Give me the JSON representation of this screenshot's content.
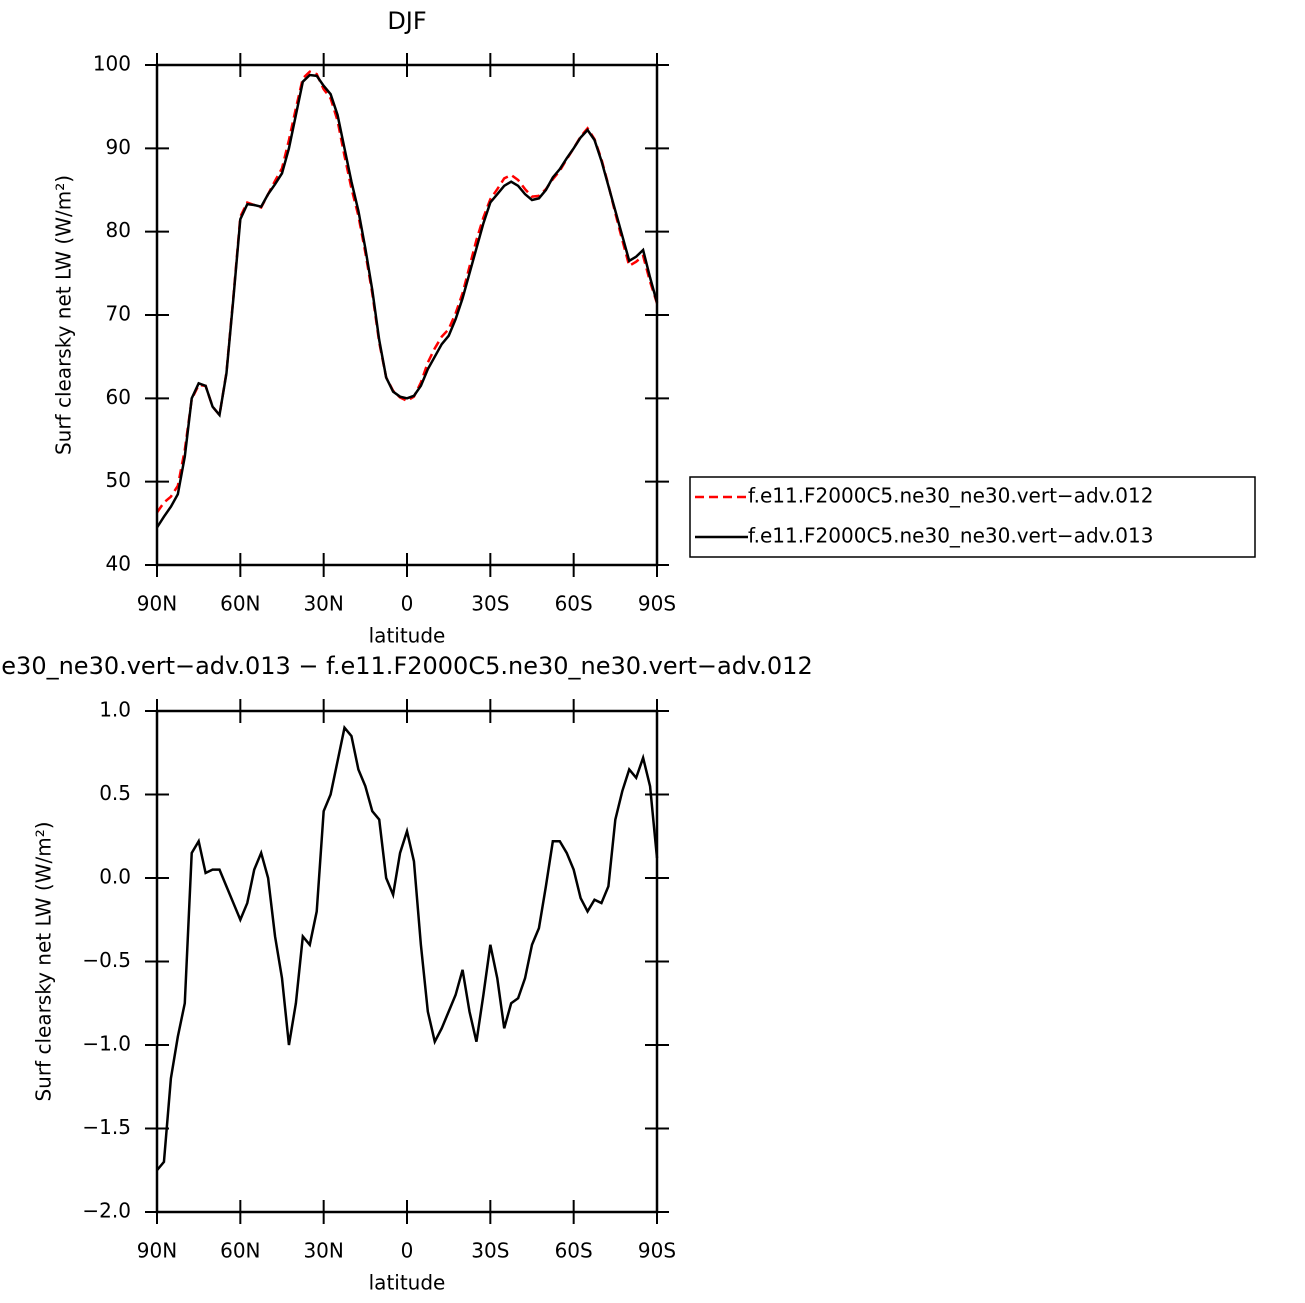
{
  "chart_data": [
    {
      "type": "line",
      "title": "DJF",
      "xlabel": "latitude",
      "ylabel": "Surf clearsky net LW (W/m²)",
      "x": [
        90,
        87.5,
        85,
        82.5,
        80,
        77.5,
        75,
        72.5,
        70,
        67.5,
        65,
        62.5,
        60,
        57.5,
        55,
        52.5,
        50,
        47.5,
        45,
        42.5,
        40,
        37.5,
        35,
        32.5,
        30,
        27.5,
        25,
        22.5,
        20,
        17.5,
        15,
        12.5,
        10,
        7.5,
        5,
        2.5,
        0,
        -2.5,
        -5,
        -7.5,
        -10,
        -12.5,
        -15,
        -17.5,
        -20,
        -22.5,
        -25,
        -27.5,
        -30,
        -32.5,
        -35,
        -37.5,
        -40,
        -42.5,
        -45,
        -47.5,
        -50,
        -52.5,
        -55,
        -57.5,
        -60,
        -62.5,
        -65,
        -67.5,
        -70,
        -72.5,
        -75,
        -77.5,
        -80,
        -82.5,
        -85,
        -87.5,
        -90
      ],
      "series": [
        {
          "name": "f.e11.F2000C5.ne30_ne30.vert−adv.012",
          "color": "#ff0000",
          "style": "dashed",
          "values": [
            46.3,
            47.5,
            48.2,
            49.5,
            53.8,
            59.9,
            61.6,
            61.5,
            59.0,
            58.0,
            63.1,
            72.2,
            81.8,
            83.5,
            83.2,
            82.9,
            84.5,
            86.1,
            87.6,
            91,
            94.8,
            98.4,
            99.2,
            98.9,
            97.1,
            96,
            93.3,
            89.1,
            85.2,
            81.9,
            77.5,
            72.6,
            66.7,
            62.5,
            60.9,
            60.1,
            59.7,
            60.2,
            61.9,
            64.3,
            66.0,
            67.4,
            68.3,
            70.2,
            72.6,
            75.8,
            79.0,
            81.7,
            83.9,
            85.1,
            86.4,
            86.8,
            86.2,
            85.1,
            84.2,
            84.3,
            85.1,
            86.3,
            87.3,
            88.7,
            90.0,
            91.4,
            92.4,
            91.1,
            88.7,
            85.6,
            82.2,
            79.0,
            75.9,
            76.4,
            77.1,
            74.0,
            71.4
          ]
        },
        {
          "name": "f.e11.F2000C5.ne30_ne30.vert−adv.013",
          "color": "#000000",
          "style": "solid",
          "values": [
            44.5,
            45.8,
            47,
            48.5,
            53,
            60,
            61.8,
            61.5,
            59,
            58,
            63,
            72,
            81.5,
            83.3,
            83.2,
            83,
            84.5,
            85.7,
            87,
            90,
            94,
            98,
            98.8,
            98.7,
            97.5,
            96.5,
            94,
            90,
            86,
            82.5,
            78,
            73,
            67,
            62.5,
            60.8,
            60.2,
            60,
            60.3,
            61.5,
            63.5,
            65,
            66.5,
            67.5,
            69.5,
            72,
            75,
            78,
            81,
            83.5,
            84.5,
            85.5,
            86,
            85.5,
            84.5,
            83.8,
            84,
            85,
            86.5,
            87.5,
            88.8,
            90,
            91.3,
            92.2,
            91,
            88.5,
            85.5,
            82.5,
            79.5,
            76.5,
            77,
            77.8,
            74.5,
            71.5
          ]
        }
      ],
      "xlim": [
        90,
        -90
      ],
      "xticks": [
        {
          "value": 90,
          "label": "90N"
        },
        {
          "value": 60,
          "label": "60N"
        },
        {
          "value": 30,
          "label": "30N"
        },
        0,
        {
          "value": -30,
          "label": "30S"
        },
        {
          "value": -60,
          "label": "60S"
        },
        {
          "value": -90,
          "label": "90S"
        }
      ],
      "ylim": [
        40,
        100
      ],
      "yticks": [
        40,
        50,
        60,
        70,
        80,
        90,
        100
      ],
      "legend": "right"
    },
    {
      "type": "line",
      "title": "e30_ne30.vert−adv.013 − f.e11.F2000C5.ne30_ne30.vert−adv.012",
      "xlabel": "latitude",
      "ylabel": "Surf clearsky net LW (W/m²)",
      "x": [
        90,
        87.5,
        85,
        82.5,
        80,
        77.5,
        75,
        72.5,
        70,
        67.5,
        65,
        62.5,
        60,
        57.5,
        55,
        52.5,
        50,
        47.5,
        45,
        42.5,
        40,
        37.5,
        35,
        32.5,
        30,
        27.5,
        25,
        22.5,
        20,
        17.5,
        15,
        12.5,
        10,
        7.5,
        5,
        2.5,
        0,
        -2.5,
        -5,
        -7.5,
        -10,
        -12.5,
        -15,
        -17.5,
        -20,
        -22.5,
        -25,
        -27.5,
        -30,
        -32.5,
        -35,
        -37.5,
        -40,
        -42.5,
        -45,
        -47.5,
        -50,
        -52.5,
        -55,
        -57.5,
        -60,
        -62.5,
        -65,
        -67.5,
        -70,
        -72.5,
        -75,
        -77.5,
        -80,
        -82.5,
        -85,
        -87.5,
        -90
      ],
      "series": [
        {
          "color": "#000000",
          "style": "solid",
          "values": [
            -1.75,
            -1.7,
            -1.2,
            -0.95,
            -0.75,
            0.15,
            0.22,
            0.03,
            0.05,
            0.05,
            -0.05,
            -0.15,
            -0.25,
            -0.15,
            0.05,
            0.15,
            0.0,
            -0.35,
            -0.6,
            -1.0,
            -0.75,
            -0.35,
            -0.4,
            -0.2,
            0.4,
            0.5,
            0.7,
            0.9,
            0.85,
            0.65,
            0.55,
            0.4,
            0.35,
            0.0,
            -0.1,
            0.15,
            0.28,
            0.1,
            -0.4,
            -0.8,
            -0.98,
            -0.9,
            -0.8,
            -0.7,
            -0.55,
            -0.8,
            -0.98,
            -0.7,
            -0.4,
            -0.6,
            -0.9,
            -0.75,
            -0.72,
            -0.6,
            -0.4,
            -0.3,
            -0.05,
            0.22,
            0.22,
            0.15,
            0.05,
            -0.12,
            -0.2,
            -0.13,
            -0.15,
            -0.05,
            0.35,
            0.52,
            0.65,
            0.6,
            0.72,
            0.55,
            0.12
          ]
        }
      ],
      "xlim": [
        90,
        -90
      ],
      "xticks": [
        {
          "value": 90,
          "label": "90N"
        },
        {
          "value": 60,
          "label": "60N"
        },
        {
          "value": 30,
          "label": "30N"
        },
        0,
        {
          "value": -30,
          "label": "30S"
        },
        {
          "value": -60,
          "label": "60S"
        },
        {
          "value": -90,
          "label": "90S"
        }
      ],
      "ylim": [
        -2,
        1
      ],
      "yticks": [
        {
          "value": -2,
          "label": "−2.0"
        },
        {
          "value": -1.5,
          "label": "−1.5"
        },
        {
          "value": -1,
          "label": "−1.0"
        },
        {
          "value": -0.5,
          "label": "−0.5"
        },
        {
          "value": 0,
          "label": "0.0"
        },
        {
          "value": 0.5,
          "label": "0.5"
        },
        {
          "value": 1,
          "label": "1.0"
        }
      ]
    }
  ]
}
